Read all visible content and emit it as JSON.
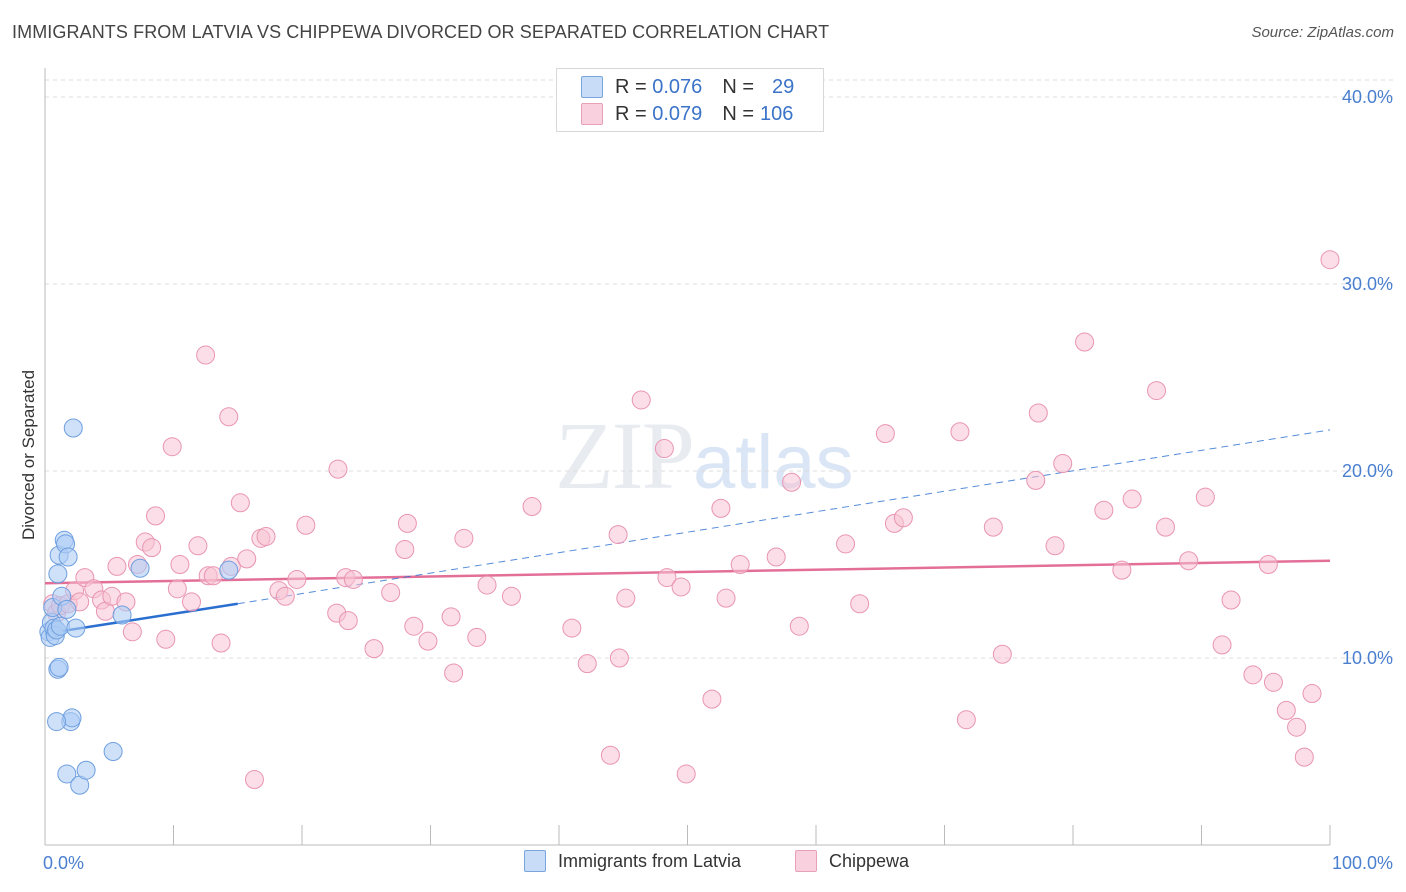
{
  "header": {
    "title": "IMMIGRANTS FROM LATVIA VS CHIPPEWA DIVORCED OR SEPARATED CORRELATION CHART",
    "source": "Source: ZipAtlas.com"
  },
  "watermark": {
    "zip": "ZIP",
    "atlas": "atlas"
  },
  "stats": {
    "rows": [
      {
        "r_label": "R =",
        "r_value": "0.076",
        "n_label": "N =",
        "n_value": "29"
      },
      {
        "r_label": "R =",
        "r_value": "0.079",
        "n_label": "N =",
        "n_value": "106"
      }
    ]
  },
  "legend": {
    "items": [
      {
        "label": "Immigrants from Latvia"
      },
      {
        "label": "Chippewa"
      }
    ]
  },
  "colors": {
    "latvia_fill": "#aecdf5",
    "latvia_stroke": "#6f9fdf",
    "latvia_line": "#2a6fd0",
    "chippewa_fill": "#f7c3d4",
    "chippewa_stroke": "#e995b2",
    "chippewa_line": "#e36f98",
    "axis_label": "#4a7fd0",
    "grid": "#dcdcdc"
  },
  "chart_data": {
    "type": "scatter",
    "title": "IMMIGRANTS FROM LATVIA VS CHIPPEWA DIVORCED OR SEPARATED CORRELATION CHART",
    "xlabel": "",
    "ylabel": "Divorced or Separated",
    "xlim": [
      0,
      100
    ],
    "ylim": [
      0,
      40
    ],
    "x_tick_labels": [
      "0.0%",
      "100.0%"
    ],
    "y_ticks": [
      10,
      20,
      30,
      40
    ],
    "y_tick_labels": [
      "10.0%",
      "20.0%",
      "30.0%",
      "40.0%"
    ],
    "legend_position": "bottom-center",
    "series": [
      {
        "name": "Immigrants from Latvia",
        "r": 0.076,
        "n": 29,
        "trend_solid": [
          [
            0,
            11.3
          ],
          [
            15,
            12.9
          ]
        ],
        "trend_dashed": [
          [
            15,
            12.9
          ],
          [
            100,
            22.2
          ]
        ],
        "points": [
          [
            0.3,
            11.4
          ],
          [
            0.4,
            11.1
          ],
          [
            0.5,
            11.9
          ],
          [
            0.6,
            12.7
          ],
          [
            0.7,
            11.6
          ],
          [
            0.8,
            11.2
          ],
          [
            0.9,
            11.5
          ],
          [
            1.0,
            9.4
          ],
          [
            1.1,
            9.5
          ],
          [
            1.0,
            14.5
          ],
          [
            1.1,
            15.5
          ],
          [
            1.2,
            11.7
          ],
          [
            1.3,
            13.3
          ],
          [
            1.5,
            16.3
          ],
          [
            1.6,
            16.1
          ],
          [
            1.7,
            12.6
          ],
          [
            1.7,
            3.8
          ],
          [
            1.8,
            15.4
          ],
          [
            2.0,
            6.6
          ],
          [
            2.1,
            6.8
          ],
          [
            2.2,
            22.3
          ],
          [
            2.4,
            11.6
          ],
          [
            2.7,
            3.2
          ],
          [
            3.2,
            4.0
          ],
          [
            5.3,
            5.0
          ],
          [
            6.0,
            12.3
          ],
          [
            7.4,
            14.8
          ],
          [
            14.3,
            14.7
          ],
          [
            0.9,
            6.6
          ]
        ]
      },
      {
        "name": "Chippewa",
        "r": 0.079,
        "n": 106,
        "trend": [
          [
            0,
            14.0
          ],
          [
            100,
            15.2
          ]
        ],
        "points": [
          [
            0.6,
            12.9
          ],
          [
            0.9,
            12.4
          ],
          [
            1.2,
            12.8
          ],
          [
            1.8,
            12.9
          ],
          [
            2.3,
            13.6
          ],
          [
            2.7,
            13.0
          ],
          [
            3.1,
            14.3
          ],
          [
            3.8,
            13.7
          ],
          [
            4.4,
            13.1
          ],
          [
            4.7,
            12.5
          ],
          [
            5.2,
            13.3
          ],
          [
            5.6,
            14.9
          ],
          [
            6.3,
            13.0
          ],
          [
            6.8,
            11.4
          ],
          [
            7.2,
            15.0
          ],
          [
            7.8,
            16.2
          ],
          [
            8.3,
            15.9
          ],
          [
            8.6,
            17.6
          ],
          [
            9.4,
            11.0
          ],
          [
            9.9,
            21.3
          ],
          [
            10.3,
            13.7
          ],
          [
            10.5,
            15.0
          ],
          [
            11.4,
            13.0
          ],
          [
            11.9,
            16.0
          ],
          [
            12.5,
            26.2
          ],
          [
            12.7,
            14.4
          ],
          [
            13.1,
            14.4
          ],
          [
            13.7,
            10.8
          ],
          [
            14.3,
            22.9
          ],
          [
            14.5,
            14.9
          ],
          [
            15.2,
            18.3
          ],
          [
            15.7,
            15.3
          ],
          [
            16.3,
            3.5
          ],
          [
            16.8,
            16.4
          ],
          [
            17.2,
            16.5
          ],
          [
            18.2,
            13.6
          ],
          [
            18.7,
            13.3
          ],
          [
            19.6,
            14.2
          ],
          [
            20.3,
            17.1
          ],
          [
            22.7,
            12.4
          ],
          [
            22.8,
            20.1
          ],
          [
            23.4,
            14.3
          ],
          [
            23.6,
            12.0
          ],
          [
            24.0,
            14.2
          ],
          [
            25.6,
            10.5
          ],
          [
            26.9,
            13.5
          ],
          [
            28.0,
            15.8
          ],
          [
            28.2,
            17.2
          ],
          [
            28.7,
            11.7
          ],
          [
            29.8,
            10.9
          ],
          [
            31.6,
            12.2
          ],
          [
            31.8,
            9.2
          ],
          [
            32.6,
            16.4
          ],
          [
            33.6,
            11.1
          ],
          [
            34.4,
            13.9
          ],
          [
            36.3,
            13.3
          ],
          [
            37.9,
            18.1
          ],
          [
            41.0,
            11.6
          ],
          [
            42.2,
            9.7
          ],
          [
            44.0,
            4.8
          ],
          [
            44.6,
            16.6
          ],
          [
            44.7,
            10.0
          ],
          [
            45.2,
            13.2
          ],
          [
            46.4,
            23.8
          ],
          [
            48.2,
            21.2
          ],
          [
            48.4,
            14.3
          ],
          [
            49.5,
            13.8
          ],
          [
            49.9,
            3.8
          ],
          [
            51.9,
            7.8
          ],
          [
            52.6,
            18.0
          ],
          [
            53.0,
            13.2
          ],
          [
            54.1,
            15.0
          ],
          [
            56.9,
            15.4
          ],
          [
            58.1,
            19.4
          ],
          [
            58.7,
            11.7
          ],
          [
            62.3,
            16.1
          ],
          [
            63.4,
            12.9
          ],
          [
            65.4,
            22.0
          ],
          [
            66.1,
            17.2
          ],
          [
            66.8,
            17.5
          ],
          [
            71.2,
            22.1
          ],
          [
            71.7,
            6.7
          ],
          [
            73.8,
            17.0
          ],
          [
            74.5,
            10.2
          ],
          [
            77.1,
            19.5
          ],
          [
            77.3,
            23.1
          ],
          [
            78.6,
            16.0
          ],
          [
            79.2,
            20.4
          ],
          [
            80.9,
            26.9
          ],
          [
            82.4,
            17.9
          ],
          [
            83.8,
            14.7
          ],
          [
            84.6,
            18.5
          ],
          [
            86.5,
            24.3
          ],
          [
            87.2,
            17.0
          ],
          [
            89.0,
            15.2
          ],
          [
            90.3,
            18.6
          ],
          [
            91.6,
            10.7
          ],
          [
            92.3,
            13.1
          ],
          [
            94.0,
            9.1
          ],
          [
            95.6,
            8.7
          ],
          [
            96.6,
            7.2
          ],
          [
            97.4,
            6.3
          ],
          [
            98.0,
            4.7
          ],
          [
            98.6,
            8.1
          ],
          [
            100.0,
            31.3
          ],
          [
            95.2,
            15.0
          ]
        ]
      }
    ]
  }
}
